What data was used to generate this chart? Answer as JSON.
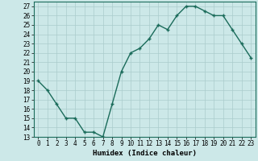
{
  "x": [
    0,
    1,
    2,
    3,
    4,
    5,
    6,
    7,
    8,
    9,
    10,
    11,
    12,
    13,
    14,
    15,
    16,
    17,
    18,
    19,
    20,
    21,
    22,
    23
  ],
  "y": [
    19.0,
    18.0,
    16.5,
    15.0,
    15.0,
    13.5,
    13.5,
    13.0,
    16.5,
    20.0,
    22.0,
    22.5,
    23.5,
    25.0,
    24.5,
    26.0,
    27.0,
    27.0,
    26.5,
    26.0,
    26.0,
    24.5,
    23.0,
    21.5
  ],
  "line_color": "#1a6b5a",
  "marker": "+",
  "bg_color": "#cce8e8",
  "grid_color": "#aacccc",
  "xlabel": "Humidex (Indice chaleur)",
  "xlim": [
    -0.5,
    23.5
  ],
  "ylim": [
    13,
    27.5
  ],
  "yticks": [
    13,
    14,
    15,
    16,
    17,
    18,
    19,
    20,
    21,
    22,
    23,
    24,
    25,
    26,
    27
  ],
  "xticks": [
    0,
    1,
    2,
    3,
    4,
    5,
    6,
    7,
    8,
    9,
    10,
    11,
    12,
    13,
    14,
    15,
    16,
    17,
    18,
    19,
    20,
    21,
    22,
    23
  ],
  "tick_fontsize": 5.5,
  "xlabel_fontsize": 6.5,
  "linewidth": 1.0,
  "markersize": 3,
  "markeredgewidth": 1.0
}
